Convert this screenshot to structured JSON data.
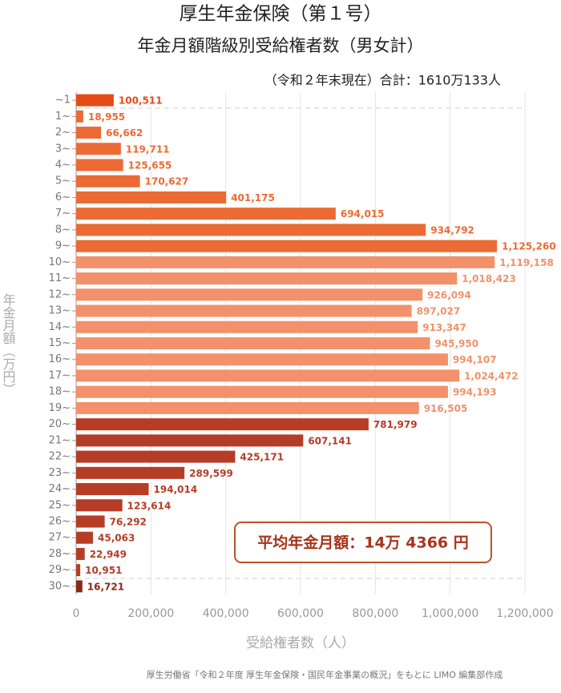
{
  "chart_data": {
    "type": "bar",
    "orientation": "horizontal",
    "title": "厚生年金保険（第１号）",
    "subtitle": "年金月額階級別受給権者数（男女計）",
    "note": "（令和２年末現在）合計：1610万133人",
    "y_label": "年金月額（万円）",
    "x_label": "受給権者数（人）",
    "annotation": "平均年金月額：14万 4366 円",
    "source": "厚生労働省「令和２年度 厚生年金保険・国民年金事業の概況」をもとに LIMO 編集部作成",
    "categories": [
      "~1",
      "1~",
      "2~",
      "3~",
      "4~",
      "5~",
      "6~",
      "7~",
      "8~",
      "9~",
      "10~",
      "11~",
      "12~",
      "13~",
      "14~",
      "15~",
      "16~",
      "17~",
      "18~",
      "19~",
      "20~",
      "21~",
      "22~",
      "23~",
      "24~",
      "25~",
      "26~",
      "27~",
      "28~",
      "29~",
      "30~"
    ],
    "values": [
      100511,
      18955,
      66662,
      119711,
      125655,
      170627,
      401175,
      694015,
      934792,
      1125260,
      1119158,
      1018423,
      926094,
      897027,
      913347,
      945950,
      994107,
      1024472,
      994193,
      916505,
      781979,
      607141,
      425171,
      289599,
      194014,
      123614,
      76292,
      45063,
      22949,
      10951,
      16721
    ],
    "value_labels": [
      "100,511",
      "18,955",
      "66,662",
      "119,711",
      "125,655",
      "170,627",
      "401,175",
      "694,015",
      "934,792",
      "1,125,260",
      "1,119,158",
      "1,018,423",
      "926,094",
      "897,027",
      "913,347",
      "945,950",
      "994,107",
      "1,024,472",
      "994,193",
      "916,505",
      "781,979",
      "607,141",
      "425,171",
      "289,599",
      "194,014",
      "123,614",
      "76,292",
      "45,063",
      "22,949",
      "10,951",
      "16,721"
    ],
    "colors": [
      "#e54b16",
      "#ec6a34",
      "#ec6a34",
      "#ec6a34",
      "#ec6a34",
      "#ec6a34",
      "#ec6a34",
      "#ec6a34",
      "#ec6a34",
      "#ec6a34",
      "#f2916a",
      "#f2916a",
      "#f2916a",
      "#f2916a",
      "#f2916a",
      "#f2916a",
      "#f2916a",
      "#f2916a",
      "#f2916a",
      "#f2916a",
      "#b53d26",
      "#b53d26",
      "#b53d26",
      "#b53d26",
      "#b53d26",
      "#b53d26",
      "#b53d26",
      "#b53d26",
      "#b53d26",
      "#b53d26",
      "#8a2a18"
    ],
    "xlim": [
      0,
      1200000
    ],
    "xticks": [
      0,
      {
        "value": 200000,
        "label": "200,000"
      },
      {
        "value": 400000,
        "label": "400,000"
      },
      {
        "value": 600000,
        "label": "600,000"
      },
      {
        "value": 800000,
        "label": "800,000"
      },
      {
        "value": 1000000,
        "label": "1,000,000"
      },
      {
        "value": 1200000,
        "label": "1,200,000"
      }
    ],
    "grid": true
  }
}
